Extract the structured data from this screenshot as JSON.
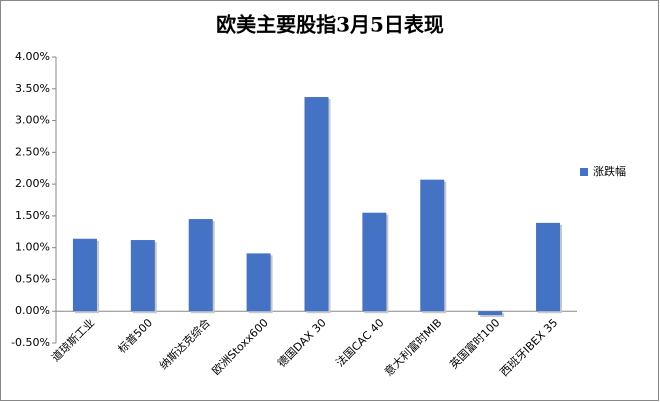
{
  "chart_data": {
    "type": "bar",
    "title": "欧美主要股指3月5日表现",
    "categories": [
      "道琼斯工业",
      "标普500",
      "纳斯达克综合",
      "欧洲Stoxx600",
      "德国DAX 30",
      "法国CAC 40",
      "意大利富时MIB",
      "英国富时100",
      "西班牙IBEX 35"
    ],
    "series": [
      {
        "name": "涨跌幅",
        "color": "#4472c4",
        "values": [
          1.14,
          1.12,
          1.45,
          0.91,
          3.37,
          1.55,
          2.07,
          -0.06,
          1.39
        ]
      }
    ],
    "ylim": [
      -0.5,
      4.0
    ],
    "yticks": [
      {
        "value": -0.5,
        "label": "-0.50%"
      },
      {
        "value": 0,
        "label": "0.00%"
      },
      {
        "value": 0.5,
        "label": "0.50%"
      },
      {
        "value": 1.0,
        "label": "1.00%"
      },
      {
        "value": 1.5,
        "label": "1.50%"
      },
      {
        "value": 2.0,
        "label": "2.00%"
      },
      {
        "value": 2.5,
        "label": "2.50%"
      },
      {
        "value": 3.0,
        "label": "3.00%"
      },
      {
        "value": 3.5,
        "label": "3.50%"
      },
      {
        "value": 4.0,
        "label": "4.00%"
      }
    ],
    "grid": false,
    "legend": "right"
  }
}
